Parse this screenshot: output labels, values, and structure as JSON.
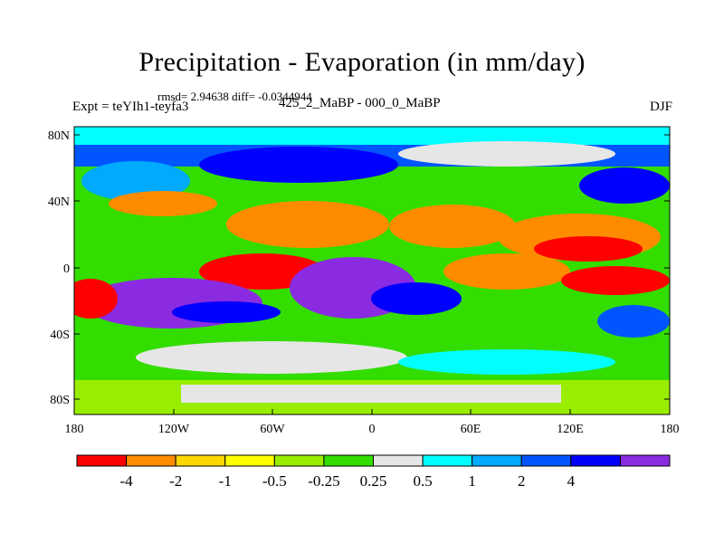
{
  "title": "Precipitation - Evaporation (in mm/day)",
  "stats": "rmsd= 2.94638 diff= -0.0344944",
  "left_label": "Expt = teYIh1-teyfa3",
  "center_label": "425_2_MaBP - 000_0_MaBP",
  "right_label": "DJF",
  "y_ticks": [
    "80N",
    "40N",
    "0",
    "40S",
    "80S"
  ],
  "x_ticks": [
    "180",
    "120W",
    "60W",
    "0",
    "60E",
    "120E",
    "180"
  ],
  "colorbar": {
    "colors": [
      "#ff0000",
      "#ff8c00",
      "#ffd700",
      "#ffff00",
      "#99ee00",
      "#33dd00",
      "#e6e6e6",
      "#00ffff",
      "#00aaff",
      "#0055ff",
      "#0000ff",
      "#8a2be2"
    ],
    "labels": [
      "-4",
      "-2",
      "-1",
      "-0.5",
      "-0.25",
      "0.25",
      "0.5",
      "1",
      "2",
      "4"
    ]
  }
}
